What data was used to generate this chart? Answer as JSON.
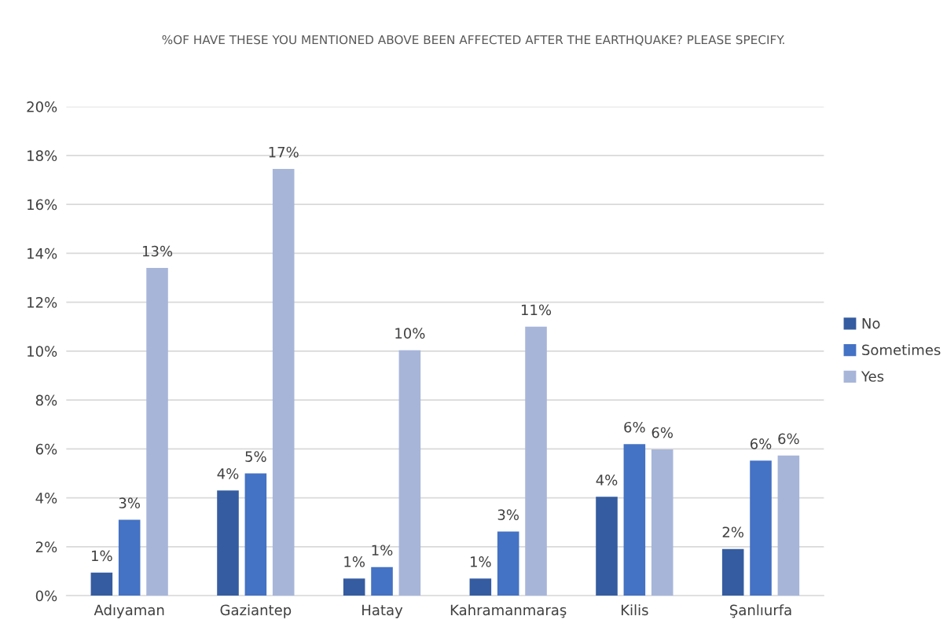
{
  "chart_data": {
    "type": "bar",
    "title": "%OF HAVE THESE YOU MENTIONED ABOVE BEEN AFFECTED AFTER THE EARTHQUAKE? PLEASE SPECIFY.",
    "categories": [
      "Adıyaman",
      "Gaziantep",
      "Hatay",
      "Kahramanmaraş",
      "Kilis",
      "Şanlıurfa"
    ],
    "series": [
      {
        "name": "No",
        "color": "#355ca0",
        "values": [
          0.94,
          4.3,
          0.7,
          0.7,
          4.04,
          1.91
        ],
        "value_labels": [
          "1%",
          "4%",
          "1%",
          "1%",
          "4%",
          "2%"
        ]
      },
      {
        "name": "Sometimes",
        "color": "#4472c4",
        "values": [
          3.1,
          5.0,
          1.17,
          2.62,
          6.2,
          5.52
        ],
        "value_labels": [
          "3%",
          "5%",
          "1%",
          "3%",
          "6%",
          "6%"
        ]
      },
      {
        "name": "Yes",
        "color": "#a7b5d9",
        "values": [
          13.4,
          17.45,
          10.04,
          11.0,
          5.98,
          5.73
        ],
        "value_labels": [
          "13%",
          "17%",
          "10%",
          "11%",
          "6%",
          "6%"
        ]
      }
    ],
    "ylim": [
      0,
      20
    ],
    "yticks": [
      {
        "value": 0,
        "label": "0%"
      },
      {
        "value": 2,
        "label": "2%"
      },
      {
        "value": 4,
        "label": "4%"
      },
      {
        "value": 6,
        "label": "6%"
      },
      {
        "value": 8,
        "label": "8%"
      },
      {
        "value": 10,
        "label": "10%"
      },
      {
        "value": 12,
        "label": "12%"
      },
      {
        "value": 14,
        "label": "14%"
      },
      {
        "value": 16,
        "label": "16%"
      },
      {
        "value": 18,
        "label": "18%"
      },
      {
        "value": 20,
        "label": "20%"
      }
    ],
    "grid": "y",
    "legend": "right"
  }
}
